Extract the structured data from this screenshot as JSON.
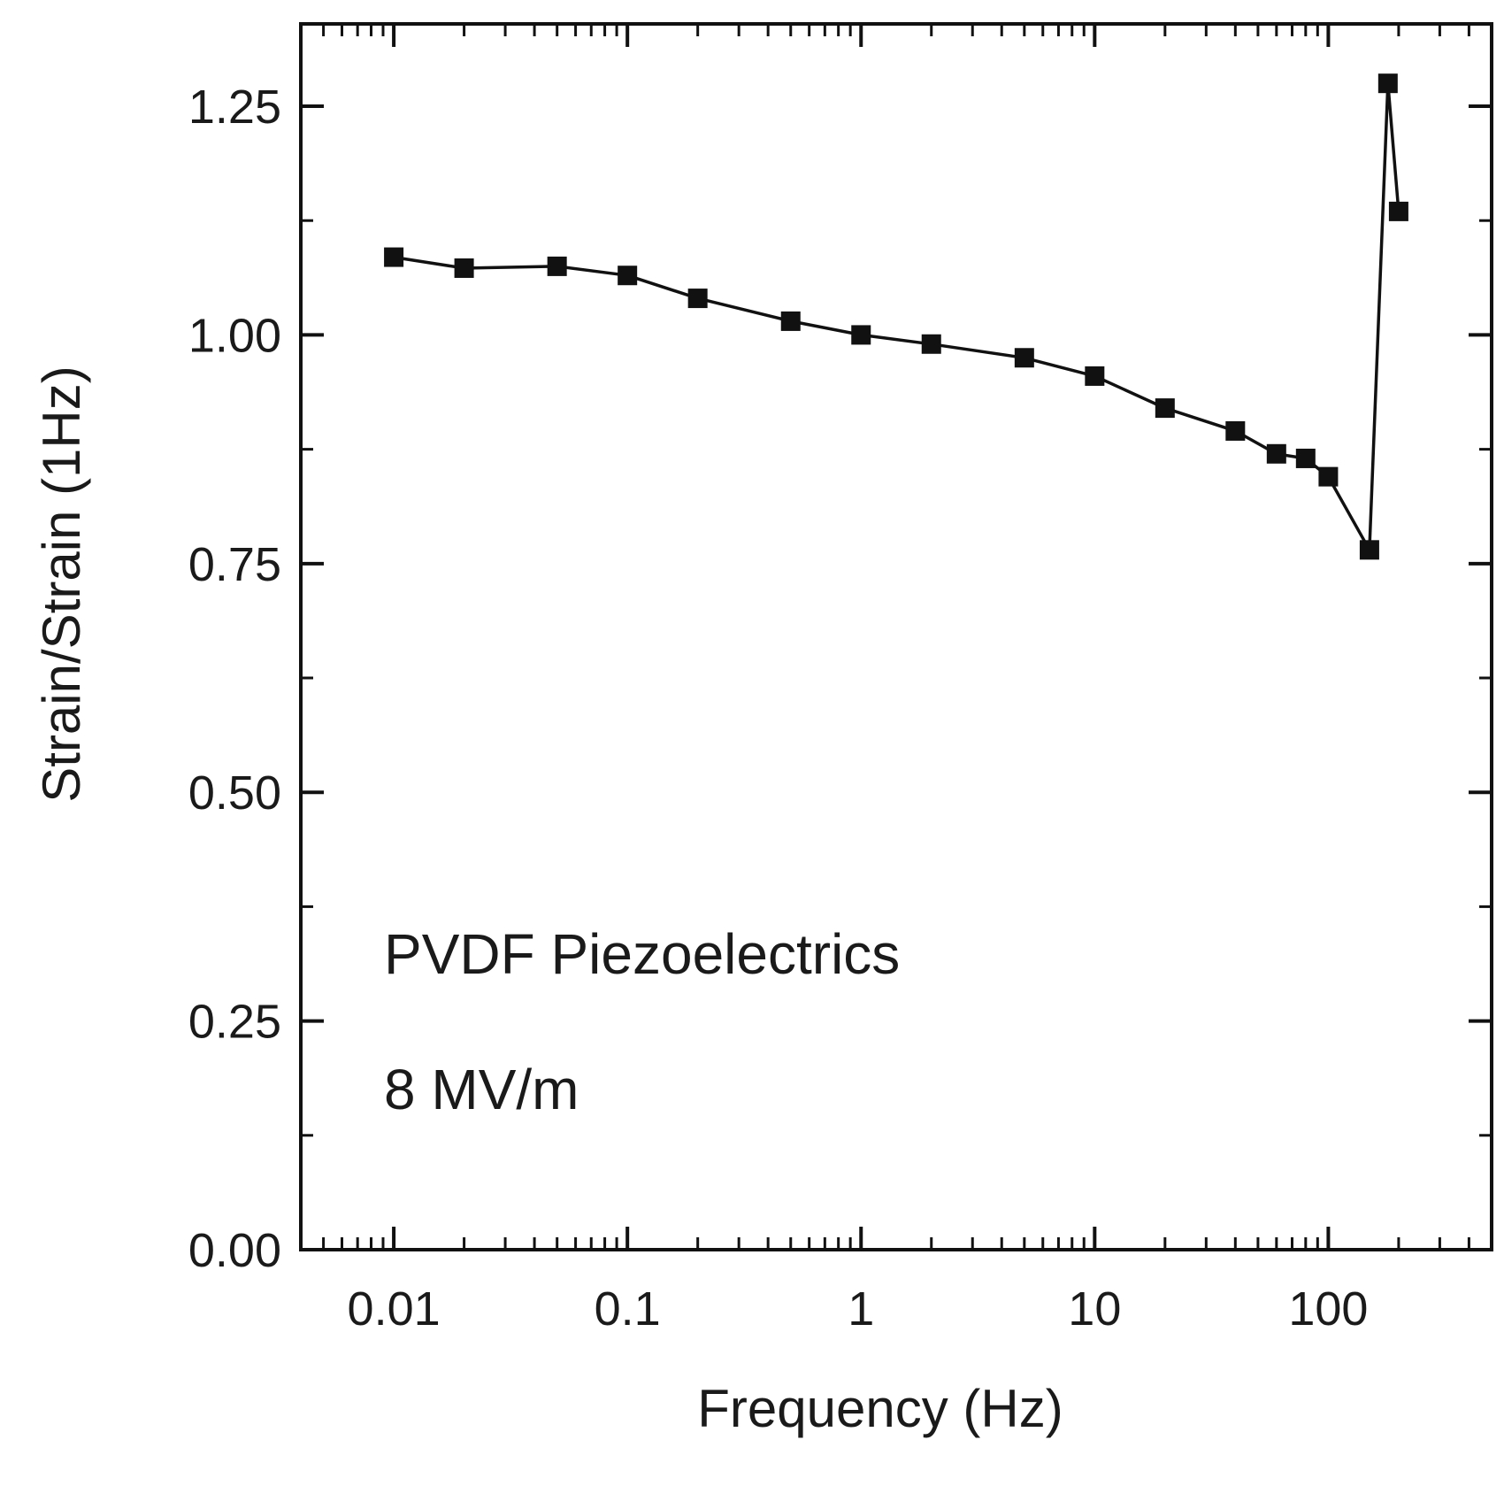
{
  "chart_data": {
    "type": "line",
    "title": "",
    "xlabel": "Frequency (Hz)",
    "ylabel": "Strain/Strain (1Hz)",
    "x_scale": "log",
    "xlim": [
      0.004,
      500
    ],
    "ylim": [
      0.0,
      1.34
    ],
    "grid": false,
    "marker": "square",
    "x_ticks": [
      {
        "value": 0.01,
        "label": "0.01"
      },
      {
        "value": 0.1,
        "label": "0.1"
      },
      {
        "value": 1,
        "label": "1"
      },
      {
        "value": 10,
        "label": "10"
      },
      {
        "value": 100,
        "label": "100"
      }
    ],
    "y_ticks": [
      {
        "value": 0.0,
        "label": "0.00"
      },
      {
        "value": 0.25,
        "label": "0.25"
      },
      {
        "value": 0.5,
        "label": "0.50"
      },
      {
        "value": 0.75,
        "label": "0.75"
      },
      {
        "value": 1.0,
        "label": "1.00"
      },
      {
        "value": 1.25,
        "label": "1.25"
      }
    ],
    "annotations": [
      "PVDF Piezoelectrics",
      "8 MV/m"
    ],
    "series": [
      {
        "name": "PVDF Piezoelectrics 8 MV/m",
        "x": [
          0.01,
          0.02,
          0.05,
          0.1,
          0.2,
          0.5,
          1,
          2,
          5,
          10,
          20,
          40,
          60,
          80,
          100,
          150,
          180,
          200
        ],
        "y": [
          1.085,
          1.073,
          1.075,
          1.065,
          1.04,
          1.015,
          1.0,
          0.99,
          0.975,
          0.955,
          0.92,
          0.895,
          0.87,
          0.865,
          0.845,
          0.765,
          1.275,
          1.135
        ]
      }
    ]
  }
}
